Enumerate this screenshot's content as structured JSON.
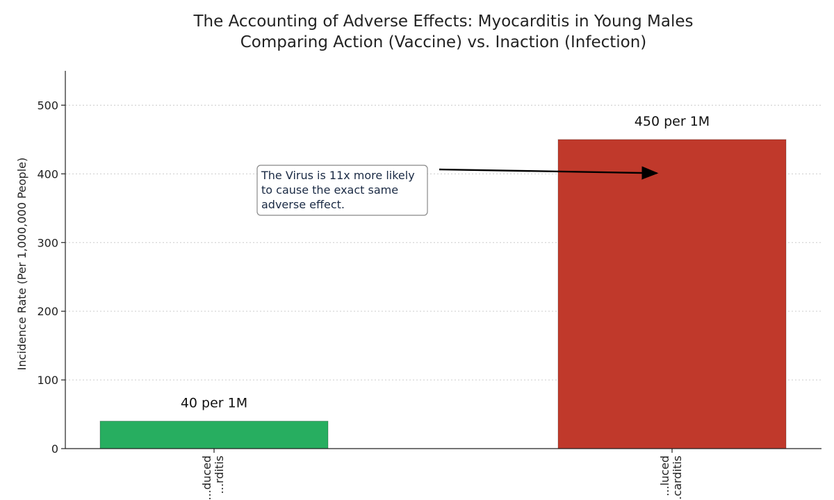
{
  "chart_data": {
    "type": "bar",
    "title_lines": [
      "The Accounting of Adverse Effects: Myocarditis in Young Males",
      "Comparing Action (Vaccine) vs. Inaction (Infection)"
    ],
    "ylabel": "Incidence Rate (Per 1,000,000 People)",
    "ylim": [
      0,
      550
    ],
    "yticks": [
      0,
      100,
      200,
      300,
      400,
      500
    ],
    "grid": "horizontal-dotted",
    "categories": [
      [
        "...duced",
        "...rditis"
      ],
      [
        "...luced",
        "...carditis"
      ]
    ],
    "values": [
      40,
      450
    ],
    "colors": [
      "#27ae60",
      "#c0392b"
    ],
    "data_labels": [
      "40 per 1M",
      "450 per 1M"
    ],
    "annotation": {
      "lines": [
        "The Virus is 11x more likely",
        "to cause the exact same",
        "adverse effect."
      ],
      "points_to_category": 1,
      "points_to_value": 400
    }
  }
}
